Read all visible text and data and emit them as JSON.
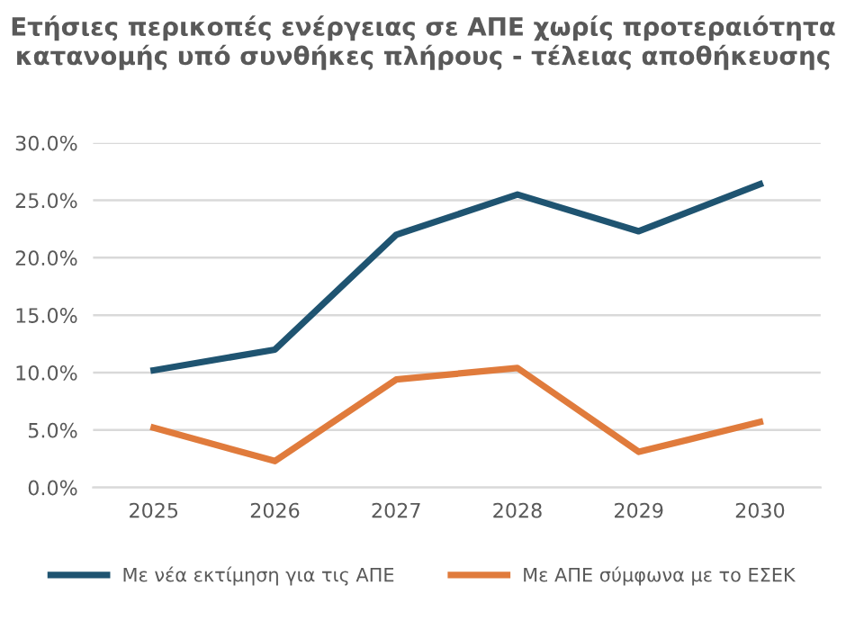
{
  "chart_data": {
    "type": "line",
    "title": "Ετήσιες περικοπές ενέργειας σε ΑΠΕ χωρίς προτεραιότητα κατανομής υπό συνθήκες πλήρους - τέλειας αποθήκευσης",
    "categories": [
      "2025",
      "2026",
      "2027",
      "2028",
      "2029",
      "2030"
    ],
    "series": [
      {
        "name": "Με νέα εκτίμηση για τις ΑΠΕ",
        "color": "#1f5471",
        "values": [
          10.2,
          12.0,
          22.0,
          25.5,
          22.3,
          26.4
        ]
      },
      {
        "name": "Με ΑΠΕ σύμφωνα με το ΕΣΕΚ",
        "color": "#e07b3c",
        "values": [
          5.2,
          2.3,
          9.4,
          10.4,
          3.1,
          5.7
        ]
      }
    ],
    "ylim": [
      0,
      30
    ],
    "yticks": [
      {
        "value": 0,
        "label": "0.0%"
      },
      {
        "value": 5,
        "label": "5.0%"
      },
      {
        "value": 10,
        "label": "10.0%"
      },
      {
        "value": 15,
        "label": "15.0%"
      },
      {
        "value": 20,
        "label": "20.0%"
      },
      {
        "value": 25,
        "label": "25.0%"
      },
      {
        "value": 30,
        "label": "30.0%"
      }
    ],
    "grid": "y",
    "legend": "bottom",
    "marker": "none",
    "line_style": "solid"
  }
}
